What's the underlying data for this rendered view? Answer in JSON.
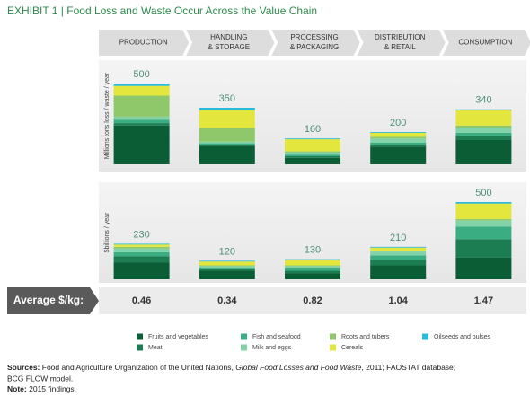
{
  "header": {
    "exhibit": "EXHIBIT 1",
    "title": "Food Loss and Waste Occur Across the Value Chain"
  },
  "chart_data": [
    {
      "type": "stacked-bar",
      "y_label": "Millions tons loss / waste / year",
      "categories": [
        [
          "PRODUCTION"
        ],
        [
          "HANDLING",
          "& STORAGE"
        ],
        [
          "PROCESSING",
          "& PACKAGING"
        ],
        [
          "DISTRIBUTION",
          "& RETAIL"
        ],
        [
          "CONSUMPTION"
        ]
      ],
      "ylim": [
        0,
        550
      ],
      "totals": [
        500,
        350,
        160,
        200,
        340
      ],
      "series": [
        {
          "name": "Fruits and vegetables",
          "color": "#0b5d36",
          "values": [
            240,
            115,
            40,
            110,
            150
          ]
        },
        {
          "name": "Meat",
          "color": "#1c7c52",
          "values": [
            15,
            5,
            10,
            10,
            25
          ]
        },
        {
          "name": "Fish and seafood",
          "color": "#3aae82",
          "values": [
            20,
            10,
            10,
            15,
            20
          ]
        },
        {
          "name": "Milk and eggs",
          "color": "#82d3a8",
          "values": [
            20,
            10,
            15,
            25,
            30
          ]
        },
        {
          "name": "Roots and tubers",
          "color": "#8fc86b",
          "values": [
            130,
            85,
            5,
            10,
            15
          ]
        },
        {
          "name": "Cereals",
          "color": "#e3e63d",
          "values": [
            60,
            110,
            75,
            25,
            95
          ]
        },
        {
          "name": "Oilseeds and pulses",
          "color": "#2bbbd8",
          "values": [
            15,
            15,
            5,
            5,
            5
          ]
        }
      ]
    },
    {
      "type": "stacked-bar",
      "y_label": "$billions / year",
      "ylim": [
        0,
        550
      ],
      "totals": [
        230,
        120,
        130,
        210,
        500
      ],
      "series": [
        {
          "values": [
            110,
            55,
            40,
            90,
            140
          ]
        },
        {
          "values": [
            40,
            10,
            15,
            35,
            120
          ]
        },
        {
          "values": [
            25,
            10,
            15,
            30,
            80
          ]
        },
        {
          "values": [
            25,
            10,
            15,
            25,
            40
          ]
        },
        {
          "values": [
            10,
            5,
            5,
            5,
            10
          ]
        },
        {
          "values": [
            15,
            25,
            35,
            20,
            100
          ]
        },
        {
          "values": [
            5,
            5,
            5,
            5,
            10
          ]
        }
      ]
    }
  ],
  "average": {
    "label": "Average $/kg:",
    "values": [
      0.46,
      0.34,
      0.82,
      1.04,
      1.47
    ]
  },
  "footnote": {
    "sources_label": "Sources:",
    "sources_text_1": "Food and Agriculture Organization of the United Nations, ",
    "sources_italic": "Global Food Losses and Food Waste",
    "sources_text_2": ", 2011; FAOSTAT database;",
    "sources_line_2": "BCG FLOW model.",
    "note_label": "Note:",
    "note_text": "2015 findings."
  }
}
